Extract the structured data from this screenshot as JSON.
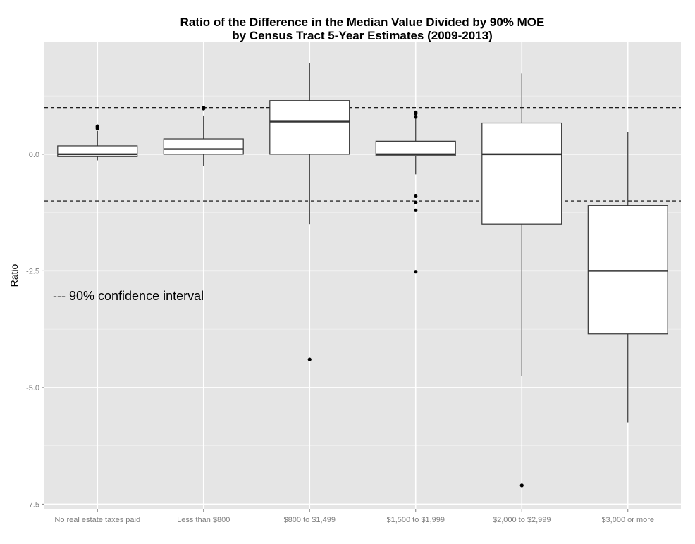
{
  "chart_data": {
    "type": "boxplot",
    "title": "Ratio of the Difference in the Median Value Divided by 90% MOE",
    "subtitle": "by Census Tract 5-Year Estimates (2009-2013)",
    "xlabel": "",
    "ylabel": "Ratio",
    "ylim": [
      -7.6,
      2.4
    ],
    "yticks": [
      {
        "value": 0,
        "label": "0.0"
      },
      {
        "value": -2.5,
        "label": "-2.5"
      },
      {
        "value": -5,
        "label": "-5.0"
      },
      {
        "value": -7.5,
        "label": "-7.5"
      }
    ],
    "grid": true,
    "reference_lines": [
      1,
      -1
    ],
    "annotation": "--- 90% confidence interval",
    "categories": [
      "No real estate taxes paid",
      "Less than $800",
      "$800 to $1,499",
      "$1,500 to $1,999",
      "$2,000 to $2,999",
      "$3,000 or more"
    ],
    "boxes": [
      {
        "whisker_low": -0.13,
        "q1": -0.05,
        "median": 0.0,
        "q3": 0.18,
        "whisker_high": 0.5,
        "outliers": [
          0.55,
          0.58,
          0.6
        ]
      },
      {
        "whisker_low": -0.25,
        "q1": 0.0,
        "median": 0.11,
        "q3": 0.33,
        "whisker_high": 0.83,
        "outliers": [
          0.98,
          1.0
        ]
      },
      {
        "whisker_low": -1.5,
        "q1": 0.0,
        "median": 0.7,
        "q3": 1.15,
        "whisker_high": 1.95,
        "outliers": [
          -4.4
        ]
      },
      {
        "whisker_low": -0.43,
        "q1": -0.03,
        "median": 0.0,
        "q3": 0.28,
        "whisker_high": 0.77,
        "outliers": [
          0.8,
          0.87,
          0.9,
          -0.9,
          -1.03,
          -1.2,
          -2.52
        ]
      },
      {
        "whisker_low": -4.75,
        "q1": -1.5,
        "median": 0.0,
        "q3": 0.67,
        "whisker_high": 1.73,
        "outliers": [
          -7.1
        ]
      },
      {
        "whisker_low": -5.75,
        "q1": -3.85,
        "median": -2.5,
        "q3": -1.1,
        "whisker_high": 0.48,
        "outliers": []
      }
    ]
  }
}
